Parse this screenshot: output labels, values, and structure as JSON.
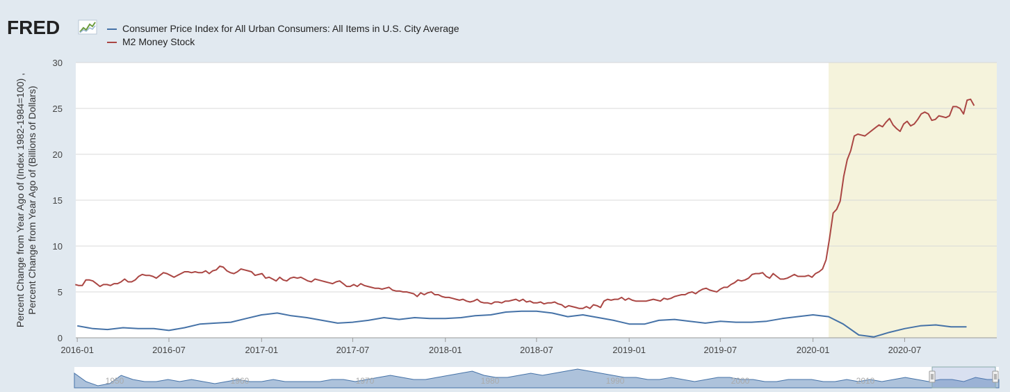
{
  "logo": {
    "text": "FRED",
    "icon": "line-chart-icon"
  },
  "colors": {
    "background": "#e1e9f0",
    "plot_background": "#ffffff",
    "recession_shade": "#f5f3dc",
    "cpi": "#4572a7",
    "m2": "#aa4643",
    "navigator_fill": "#6a8fbd"
  },
  "legend": [
    {
      "label": "Consumer Price Index for All Urban Consumers: All Items in U.S. City Average",
      "color": "#4572a7"
    },
    {
      "label": "M2 Money Stock",
      "color": "#aa4643"
    }
  ],
  "chart_data": {
    "type": "line",
    "ylabel": "Percent Change from Year Ago of (Index 1982-1984=100) , Percent Change from Year Ago of (Billions of Dollars)",
    "xlabel": "",
    "ylim": [
      0,
      30
    ],
    "xlim": [
      "2015-12-29",
      "2020-12-31"
    ],
    "y_ticks": [
      "0",
      "5",
      "10",
      "15",
      "20",
      "25",
      "30"
    ],
    "x_ticks": [
      "2016-01",
      "2016-07",
      "2017-01",
      "2017-07",
      "2018-01",
      "2018-07",
      "2019-01",
      "2019-07",
      "2020-01",
      "2020-07"
    ],
    "grid": "horizontal",
    "shaded_period": {
      "start": "2020-02-01",
      "end": "2020-12-31"
    },
    "series": [
      {
        "name": "Consumer Price Index for All Urban Consumers: All Items in U.S. City Average",
        "color": "#4572a7",
        "frequency": "monthly",
        "start": "2016-01",
        "values": [
          1.3,
          1.0,
          0.9,
          1.1,
          1.0,
          1.0,
          0.8,
          1.1,
          1.5,
          1.6,
          1.7,
          2.1,
          2.5,
          2.7,
          2.4,
          2.2,
          1.9,
          1.6,
          1.7,
          1.9,
          2.2,
          2.0,
          2.2,
          2.1,
          2.1,
          2.2,
          2.4,
          2.5,
          2.8,
          2.9,
          2.9,
          2.7,
          2.3,
          2.5,
          2.2,
          1.9,
          1.5,
          1.5,
          1.9,
          2.0,
          1.8,
          1.6,
          1.8,
          1.7,
          1.7,
          1.8,
          2.1,
          2.3,
          2.5,
          2.3,
          1.5,
          0.3,
          0.1,
          0.6,
          1.0,
          1.3,
          1.4,
          1.2,
          1.2
        ]
      },
      {
        "name": "M2 Money Stock",
        "color": "#aa4643",
        "frequency": "weekly",
        "start": "2015-12-28",
        "values": [
          5.8,
          5.7,
          5.7,
          6.3,
          6.3,
          6.2,
          5.9,
          5.6,
          5.8,
          5.8,
          5.7,
          5.9,
          5.9,
          6.1,
          6.4,
          6.1,
          6.1,
          6.3,
          6.7,
          6.9,
          6.8,
          6.8,
          6.7,
          6.5,
          6.8,
          7.1,
          7.0,
          6.8,
          6.6,
          6.8,
          7.0,
          7.2,
          7.2,
          7.1,
          7.2,
          7.1,
          7.1,
          7.3,
          7.0,
          7.3,
          7.4,
          7.8,
          7.7,
          7.3,
          7.1,
          7.0,
          7.2,
          7.5,
          7.4,
          7.3,
          7.2,
          6.8,
          6.9,
          7.0,
          6.5,
          6.6,
          6.4,
          6.2,
          6.6,
          6.3,
          6.2,
          6.5,
          6.6,
          6.5,
          6.6,
          6.4,
          6.2,
          6.1,
          6.4,
          6.3,
          6.2,
          6.1,
          6.0,
          5.9,
          6.1,
          6.2,
          5.9,
          5.6,
          5.6,
          5.8,
          5.6,
          5.9,
          5.7,
          5.6,
          5.5,
          5.4,
          5.4,
          5.3,
          5.4,
          5.5,
          5.2,
          5.1,
          5.1,
          5.0,
          5.0,
          4.9,
          4.8,
          4.5,
          4.9,
          4.7,
          4.9,
          5.0,
          4.7,
          4.7,
          4.5,
          4.4,
          4.4,
          4.3,
          4.2,
          4.1,
          4.2,
          4.0,
          3.9,
          4.0,
          4.2,
          3.9,
          3.8,
          3.8,
          3.7,
          3.9,
          3.9,
          3.8,
          4.0,
          4.0,
          4.1,
          4.2,
          4.0,
          4.2,
          3.9,
          4.0,
          3.8,
          3.8,
          3.9,
          3.7,
          3.8,
          3.8,
          3.9,
          3.7,
          3.6,
          3.3,
          3.5,
          3.4,
          3.3,
          3.2,
          3.2,
          3.4,
          3.2,
          3.6,
          3.5,
          3.3,
          4.0,
          4.2,
          4.1,
          4.2,
          4.2,
          4.4,
          4.1,
          4.3,
          4.1,
          4.0,
          4.0,
          4.0,
          4.0,
          4.1,
          4.2,
          4.1,
          4.0,
          4.3,
          4.2,
          4.3,
          4.5,
          4.6,
          4.7,
          4.7,
          4.9,
          5.0,
          4.8,
          5.1,
          5.3,
          5.4,
          5.2,
          5.1,
          5.0,
          5.3,
          5.5,
          5.5,
          5.8,
          6.0,
          6.3,
          6.2,
          6.3,
          6.5,
          6.9,
          7.0,
          7.0,
          7.1,
          6.7,
          6.5,
          7.0,
          6.7,
          6.4,
          6.4,
          6.5,
          6.7,
          6.9,
          6.7,
          6.7,
          6.7,
          6.8,
          6.6,
          7.0,
          7.2,
          7.5,
          8.5,
          10.9,
          13.6,
          14.0,
          14.9,
          17.6,
          19.4,
          20.4,
          22.0,
          22.2,
          22.1,
          22.0,
          22.3,
          22.6,
          22.9,
          23.2,
          23.0,
          23.5,
          23.9,
          23.2,
          22.8,
          22.5,
          23.3,
          23.6,
          23.1,
          23.3,
          23.8,
          24.4,
          24.6,
          24.4,
          23.7,
          23.8,
          24.2,
          24.1,
          24.0,
          24.2,
          25.2,
          25.2,
          25.0,
          24.4,
          25.9,
          26.0,
          25.3
        ]
      }
    ],
    "navigator": {
      "type": "area",
      "x_ticks": [
        "1950",
        "1960",
        "1970",
        "1980",
        "1990",
        "2000",
        "2010"
      ],
      "values": [
        7,
        3,
        1,
        2,
        6,
        4,
        3,
        3,
        4,
        3,
        4,
        3,
        2,
        3,
        4,
        3,
        3,
        4,
        3,
        3,
        3,
        3,
        4,
        4,
        3,
        4,
        5,
        6,
        5,
        4,
        4,
        5,
        6,
        7,
        8,
        6,
        5,
        5,
        6,
        7,
        6,
        7,
        8,
        9,
        8,
        7,
        6,
        5,
        5,
        4,
        4,
        5,
        4,
        3,
        4,
        5,
        5,
        4,
        4,
        3,
        3,
        4,
        4,
        4,
        3,
        3,
        4,
        3,
        4,
        3,
        4,
        5,
        4,
        3,
        4,
        4,
        3,
        5,
        4,
        4
      ]
    }
  }
}
